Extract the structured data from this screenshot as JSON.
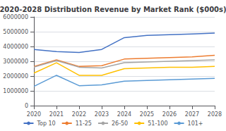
{
  "chart_data": {
    "type": "line",
    "title": "2020-2028 Distribution Revenue by Market Rank ($000s)",
    "x": [
      2020,
      2021,
      2022,
      2023,
      2024,
      2025,
      2026,
      2027,
      2028
    ],
    "xlim": [
      2020,
      2028
    ],
    "xticks": [
      2020,
      2021,
      2022,
      2023,
      2024,
      2025,
      2026,
      2027,
      2028
    ],
    "series": [
      {
        "name": "Top 10",
        "color": "#4472C4",
        "values": [
          3800000,
          3650000,
          3600000,
          3800000,
          4600000,
          4750000,
          4800000,
          4850000,
          4900000
        ]
      },
      {
        "name": "11-25",
        "color": "#ED7D31",
        "values": [
          2650000,
          3100000,
          2650000,
          2700000,
          3150000,
          3200000,
          3250000,
          3300000,
          3400000
        ]
      },
      {
        "name": "26-50",
        "color": "#A5A5A5",
        "values": [
          2600000,
          3050000,
          2600000,
          2550000,
          2900000,
          2950000,
          3000000,
          3050000,
          3100000
        ]
      },
      {
        "name": "51-100",
        "color": "#FFC000",
        "values": [
          2200000,
          2900000,
          2050000,
          2050000,
          2500000,
          2550000,
          2600000,
          2600000,
          2650000
        ]
      },
      {
        "name": "101+",
        "color": "#5B9BD5",
        "values": [
          1300000,
          2050000,
          1350000,
          1400000,
          1650000,
          1700000,
          1750000,
          1800000,
          1850000
        ]
      }
    ],
    "ylim": [
      0,
      6000000
    ],
    "yticks": [
      0,
      1000000,
      2000000,
      3000000,
      4000000,
      5000000,
      6000000
    ],
    "grid": true,
    "legend": "bottom"
  }
}
